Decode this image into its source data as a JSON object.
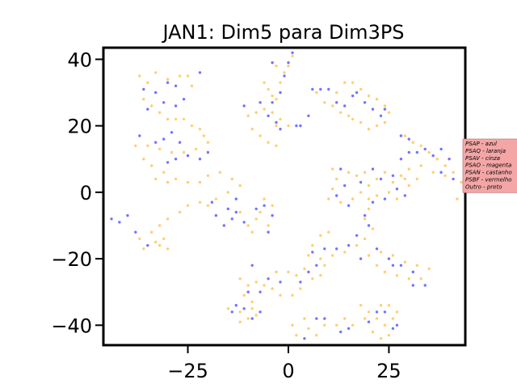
{
  "chart_data": {
    "type": "scatter",
    "title": "JAN1: Dim5 para Dim3PS",
    "xlabel": "",
    "ylabel": "",
    "xlim": [
      -46,
      44
    ],
    "ylim": [
      -46,
      43.5
    ],
    "x_ticks": [
      -25,
      0,
      25
    ],
    "y_ticks": [
      40,
      20,
      0,
      -20,
      -40
    ],
    "x_tick_labels": [
      "−25",
      "0",
      "25"
    ],
    "y_tick_labels": [
      "40",
      "20",
      "0",
      "−20",
      "−40"
    ],
    "grid": false,
    "legend_position": "right, outside plot",
    "legend_background": "#f4a6a6",
    "legend": [
      "PSAP - azul",
      "PSAQ - laranja",
      "PSAV - cinza",
      "PSAO - magenta",
      "PSAN - castanho",
      "PSBF - vermelho",
      "Outro - preto"
    ],
    "series": [
      {
        "color": "#ffa500",
        "points": [
          [
            -37,
            35
          ],
          [
            -35,
            33
          ],
          [
            -33,
            36
          ],
          [
            -30,
            34
          ],
          [
            -27,
            35
          ],
          [
            -25,
            35
          ],
          [
            -24,
            32
          ],
          [
            -36,
            28
          ],
          [
            -34,
            26
          ],
          [
            -32,
            24
          ],
          [
            -30,
            22
          ],
          [
            -28,
            22
          ],
          [
            -26,
            22
          ],
          [
            -24,
            20
          ],
          [
            -22,
            19
          ],
          [
            -21,
            17
          ],
          [
            -20,
            15
          ],
          [
            -23,
            13
          ],
          [
            -26,
            12
          ],
          [
            -29,
            12
          ],
          [
            -32,
            13
          ],
          [
            -35,
            14
          ],
          [
            -38,
            14
          ],
          [
            -36,
            10
          ],
          [
            -34,
            8
          ],
          [
            -31,
            6
          ],
          [
            -28,
            4
          ],
          [
            -25,
            3
          ],
          [
            -30,
            3
          ],
          [
            -33,
            4
          ],
          [
            -22,
            3
          ],
          [
            -20,
            5
          ],
          [
            -17,
            6
          ],
          [
            -14,
            4
          ],
          [
            -12,
            2
          ],
          [
            -15,
            0
          ],
          [
            -18,
            -2
          ],
          [
            -20,
            -4
          ],
          [
            -22,
            -3
          ],
          [
            -25,
            -4
          ],
          [
            -27,
            -6
          ],
          [
            -30,
            -8
          ],
          [
            -32,
            -10
          ],
          [
            -34,
            -12
          ],
          [
            -37,
            -14
          ],
          [
            -36,
            -17
          ],
          [
            -32,
            -16
          ],
          [
            -30,
            -17
          ],
          [
            -31,
            -14
          ],
          [
            -33,
            -15
          ],
          [
            -12,
            -6
          ],
          [
            -10,
            -10
          ],
          [
            -7,
            -6
          ],
          [
            -4,
            -4
          ],
          [
            -6,
            -2
          ],
          [
            -8,
            -8
          ],
          [
            -5,
            -10
          ],
          [
            -9,
            -12
          ],
          [
            -6,
            25
          ],
          [
            -4,
            24
          ],
          [
            -2,
            22
          ],
          [
            0,
            20
          ],
          [
            -3,
            20
          ],
          [
            -8,
            24
          ],
          [
            -10,
            23
          ],
          [
            -9,
            19
          ],
          [
            -7,
            17
          ],
          [
            -5,
            15
          ],
          [
            -3,
            14
          ],
          [
            -6,
            33
          ],
          [
            -5,
            31
          ],
          [
            -4,
            29
          ],
          [
            -3,
            28
          ],
          [
            -2,
            33
          ],
          [
            -1,
            36
          ],
          [
            0,
            38
          ],
          [
            1,
            41
          ],
          [
            -3,
            38
          ],
          [
            7,
            30
          ],
          [
            9,
            27
          ],
          [
            11,
            26
          ],
          [
            13,
            24
          ],
          [
            15,
            23
          ],
          [
            12,
            30
          ],
          [
            14,
            33
          ],
          [
            16,
            33
          ],
          [
            18,
            31
          ],
          [
            20,
            29
          ],
          [
            22,
            28
          ],
          [
            24,
            26
          ],
          [
            25,
            24
          ],
          [
            24,
            21
          ],
          [
            22,
            20
          ],
          [
            20,
            19
          ],
          [
            18,
            21
          ],
          [
            16,
            22
          ],
          [
            29,
            17
          ],
          [
            31,
            15
          ],
          [
            33,
            14
          ],
          [
            35,
            12
          ],
          [
            37,
            10
          ],
          [
            39,
            8
          ],
          [
            41,
            6
          ],
          [
            43,
            3
          ],
          [
            44,
            0
          ],
          [
            42,
            -2
          ],
          [
            39,
            5
          ],
          [
            36,
            6
          ],
          [
            33,
            8
          ],
          [
            30,
            7
          ],
          [
            29,
            4
          ],
          [
            30,
            2
          ],
          [
            32,
            4
          ],
          [
            11,
            7
          ],
          [
            12,
            4
          ],
          [
            11,
            1
          ],
          [
            10,
            -2
          ],
          [
            13,
            -3
          ],
          [
            16,
            -2
          ],
          [
            18,
            0
          ],
          [
            20,
            2
          ],
          [
            22,
            4
          ],
          [
            24,
            6
          ],
          [
            22,
            -1
          ],
          [
            20,
            -2
          ],
          [
            17,
            5
          ],
          [
            15,
            6
          ],
          [
            19,
            6
          ],
          [
            26,
            3
          ],
          [
            28,
            5
          ],
          [
            25,
            0
          ],
          [
            27,
            -2
          ],
          [
            20,
            -5
          ],
          [
            19,
            -8
          ],
          [
            21,
            -11
          ],
          [
            19,
            -14
          ],
          [
            17,
            -16
          ],
          [
            14,
            -18
          ],
          [
            11,
            -19
          ],
          [
            8,
            -20
          ],
          [
            5,
            -19
          ],
          [
            6,
            -16
          ],
          [
            8,
            -13
          ],
          [
            10,
            -12
          ],
          [
            9,
            -22
          ],
          [
            8,
            -25
          ],
          [
            20,
            -19
          ],
          [
            23,
            -18
          ],
          [
            26,
            -19
          ],
          [
            29,
            -21
          ],
          [
            32,
            -22
          ],
          [
            35,
            -23
          ],
          [
            33,
            -26
          ],
          [
            30,
            -26
          ],
          [
            27,
            -25
          ],
          [
            24,
            -24
          ],
          [
            22,
            -22
          ],
          [
            -3,
            -24
          ],
          [
            0,
            -24
          ],
          [
            2,
            -25
          ],
          [
            4,
            -23
          ],
          [
            6,
            -26
          ],
          [
            3,
            -29
          ],
          [
            1,
            -31
          ],
          [
            -2,
            -31
          ],
          [
            -4,
            -29
          ],
          [
            -6,
            -28
          ],
          [
            -8,
            -27
          ],
          [
            -10,
            -28
          ],
          [
            -12,
            -26
          ],
          [
            -11,
            -31
          ],
          [
            -9,
            -33
          ],
          [
            -15,
            -35
          ],
          [
            -12,
            -36
          ],
          [
            -10,
            -38
          ],
          [
            -8,
            -37
          ],
          [
            -12,
            -39
          ],
          [
            -9,
            -35
          ],
          [
            18,
            -34
          ],
          [
            20,
            -36
          ],
          [
            22,
            -38
          ],
          [
            24,
            -40
          ],
          [
            26,
            -38
          ],
          [
            27,
            -36
          ],
          [
            25,
            -34
          ],
          [
            23,
            -34
          ],
          [
            19,
            -38
          ],
          [
            21,
            -42
          ],
          [
            23,
            -44
          ],
          [
            25,
            -43
          ],
          [
            5,
            -41
          ],
          [
            7,
            -43
          ],
          [
            9,
            -40
          ],
          [
            12,
            -40
          ],
          [
            14,
            -38
          ],
          [
            16,
            -40
          ],
          [
            2,
            -43
          ],
          [
            1,
            -40
          ],
          [
            4,
            -38
          ]
        ]
      },
      {
        "color": "#0000ff",
        "points": [
          [
            -36,
            31
          ],
          [
            -33,
            30
          ],
          [
            -30,
            33
          ],
          [
            -28,
            32
          ],
          [
            -35,
            25
          ],
          [
            -31,
            27
          ],
          [
            -28,
            26
          ],
          [
            -22,
            36
          ],
          [
            -26,
            28
          ],
          [
            -37,
            17
          ],
          [
            -33,
            15
          ],
          [
            -31,
            16
          ],
          [
            -29,
            18
          ],
          [
            -27,
            15
          ],
          [
            -25,
            11
          ],
          [
            -22,
            10
          ],
          [
            -20,
            12
          ],
          [
            -28,
            10
          ],
          [
            -30,
            9
          ],
          [
            -44,
            -8
          ],
          [
            -42,
            -9
          ],
          [
            -40,
            -7
          ],
          [
            -38,
            -12
          ],
          [
            -35,
            -16
          ],
          [
            -16,
            -10
          ],
          [
            -18,
            -7
          ],
          [
            -19,
            -3
          ],
          [
            -15,
            -5
          ],
          [
            -13,
            -2
          ],
          [
            -14,
            -8
          ],
          [
            -11,
            -9
          ],
          [
            -8,
            -5
          ],
          [
            -6,
            -4
          ],
          [
            -4,
            -7
          ],
          [
            -5,
            -12
          ],
          [
            -13,
            -6
          ],
          [
            -11,
            26
          ],
          [
            -7,
            27
          ],
          [
            -5,
            23
          ],
          [
            -3,
            21
          ],
          [
            -2,
            19
          ],
          [
            -4,
            27
          ],
          [
            -2,
            30
          ],
          [
            -1,
            35
          ],
          [
            0,
            39
          ],
          [
            1,
            42
          ],
          [
            -4,
            39
          ],
          [
            6,
            31
          ],
          [
            8,
            31
          ],
          [
            10,
            31
          ],
          [
            12,
            27
          ],
          [
            14,
            26
          ],
          [
            16,
            29
          ],
          [
            17,
            30
          ],
          [
            19,
            27
          ],
          [
            21,
            25
          ],
          [
            23,
            23
          ],
          [
            24,
            25
          ],
          [
            3,
            20
          ],
          [
            5,
            23
          ],
          [
            2,
            20
          ],
          [
            28,
            17
          ],
          [
            30,
            16
          ],
          [
            32,
            12
          ],
          [
            34,
            13
          ],
          [
            36,
            11
          ],
          [
            38,
            13
          ],
          [
            40,
            10
          ],
          [
            38,
            6
          ],
          [
            41,
            4
          ],
          [
            28,
            10
          ],
          [
            30,
            12
          ],
          [
            13,
            7
          ],
          [
            14,
            2
          ],
          [
            12,
            -1
          ],
          [
            15,
            -4
          ],
          [
            18,
            3
          ],
          [
            21,
            7
          ],
          [
            23,
            4
          ],
          [
            24,
            -2
          ],
          [
            26,
            5
          ],
          [
            27,
            1
          ],
          [
            29,
            -1
          ],
          [
            21,
            -3
          ],
          [
            19,
            -7
          ],
          [
            20,
            -10
          ],
          [
            17,
            -13
          ],
          [
            15,
            -16
          ],
          [
            12,
            -17
          ],
          [
            9,
            -17
          ],
          [
            7,
            -22
          ],
          [
            6,
            -18
          ],
          [
            18,
            -20
          ],
          [
            22,
            -17
          ],
          [
            25,
            -20
          ],
          [
            28,
            -22
          ],
          [
            31,
            -24
          ],
          [
            34,
            -28
          ],
          [
            31,
            -28
          ],
          [
            26,
            -22
          ],
          [
            -5,
            -26
          ],
          [
            -2,
            -27
          ],
          [
            3,
            -27
          ],
          [
            5,
            -24
          ],
          [
            -7,
            -30
          ],
          [
            -10,
            -30
          ],
          [
            -9,
            -22
          ],
          [
            -13,
            -34
          ],
          [
            -7,
            -36
          ],
          [
            -9,
            -38
          ],
          [
            -11,
            -35
          ],
          [
            -14,
            -36
          ],
          [
            7,
            -38
          ],
          [
            9,
            -38
          ],
          [
            13,
            -42
          ],
          [
            15,
            -41
          ],
          [
            20,
            -39
          ],
          [
            22,
            -36
          ],
          [
            24,
            -36
          ],
          [
            26,
            -41
          ],
          [
            27,
            -40
          ],
          [
            4,
            -44
          ]
        ]
      }
    ]
  }
}
